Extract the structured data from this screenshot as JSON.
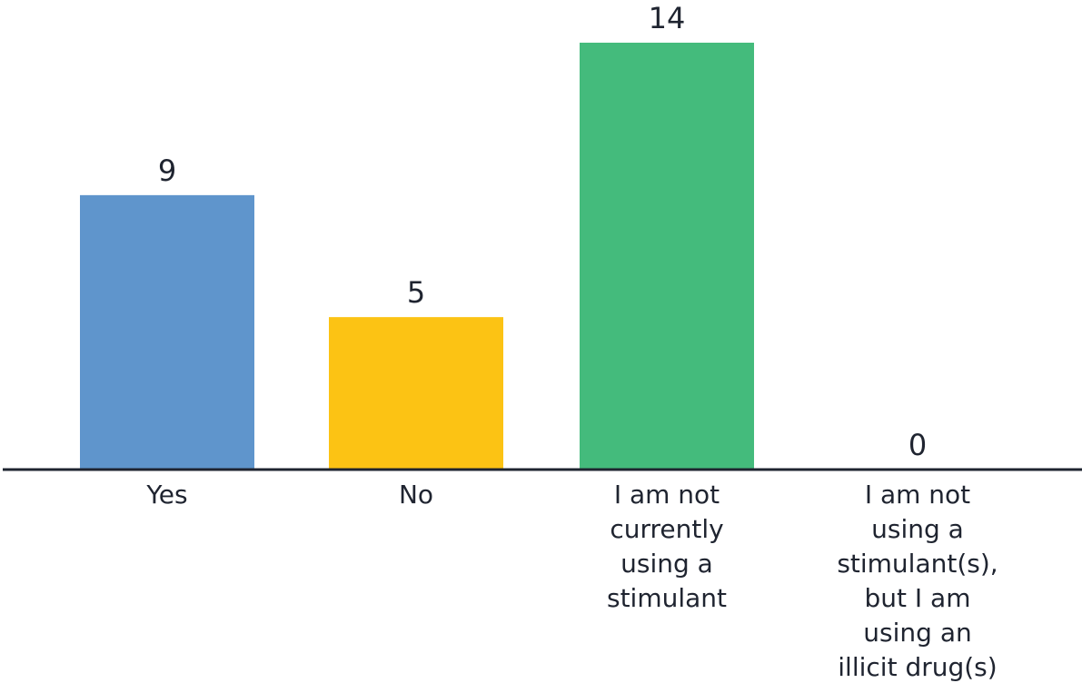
{
  "chart_data": {
    "type": "bar",
    "categories": [
      "Yes",
      "No",
      "I am not currently using a stimulant",
      "I am not using a stimulant(s), but I am using an illicit drug(s)"
    ],
    "category_label_lines": [
      [
        "Yes"
      ],
      [
        "No"
      ],
      [
        "I am not",
        "currently",
        "using a",
        "stimulant"
      ],
      [
        "I am not",
        "using a",
        "stimulant(s),",
        "but I am",
        "using an",
        "illicit drug(s)"
      ]
    ],
    "values": [
      9,
      5,
      14,
      0
    ],
    "value_labels": [
      "9",
      "5",
      "14",
      "0"
    ],
    "colors": [
      "#5f95cc",
      "#fcc314",
      "#44bb7c",
      "#9b59b6"
    ],
    "ylim": [
      0,
      14
    ],
    "grid": false,
    "legend": "none"
  }
}
